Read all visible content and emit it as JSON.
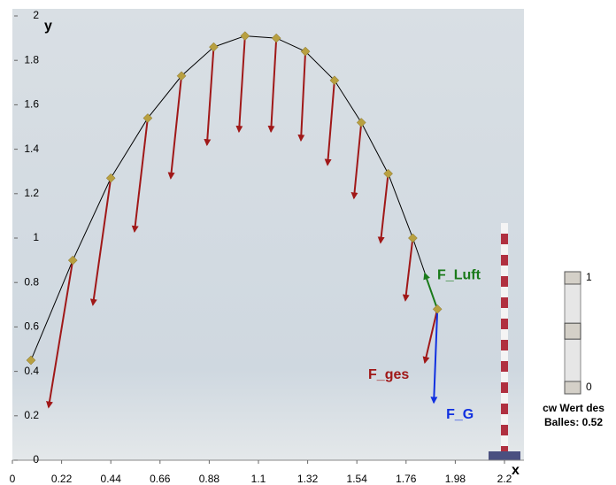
{
  "chart_data": {
    "type": "line",
    "x": [
      0.083,
      0.27,
      0.44,
      0.605,
      0.756,
      0.9,
      1.04,
      1.18,
      1.31,
      1.44,
      1.56,
      1.68,
      1.79,
      1.9
    ],
    "y": [
      0.45,
      0.9,
      1.27,
      1.54,
      1.73,
      1.86,
      1.91,
      1.9,
      1.84,
      1.71,
      1.52,
      1.29,
      1.0,
      0.68
    ],
    "color": "#000000",
    "marker_color": "#b8a040",
    "xlim": [
      0,
      2.2
    ],
    "ylim": [
      0,
      2
    ],
    "xticks": [
      0,
      0.22,
      0.44,
      0.66,
      0.88,
      1.1,
      1.32,
      1.54,
      1.76,
      1.98,
      2.2
    ],
    "yticks": [
      0,
      0.2,
      0.4,
      0.6,
      0.8,
      1,
      1.2,
      1.4,
      1.6,
      1.8,
      2
    ],
    "x_label": "x",
    "y_label": "y",
    "forces": [
      {
        "name": "F_ges",
        "color": "#a01818",
        "x_end": [
          null,
          0.162,
          0.36,
          0.546,
          0.708,
          0.87,
          1.013,
          1.156,
          1.29,
          1.409,
          1.527,
          1.646,
          1.757,
          1.844
        ],
        "y_end": [
          null,
          0.239,
          0.7,
          1.03,
          1.27,
          1.42,
          1.48,
          1.48,
          1.44,
          1.33,
          1.18,
          0.98,
          0.72,
          0.44
        ]
      },
      {
        "name": "F_Luft",
        "color": "#1a7a1a",
        "x_end": [
          null,
          null,
          null,
          null,
          null,
          null,
          null,
          null,
          null,
          null,
          null,
          null,
          null,
          1.844
        ],
        "y_end": [
          null,
          null,
          null,
          null,
          null,
          null,
          null,
          null,
          null,
          null,
          null,
          null,
          null,
          0.84
        ]
      },
      {
        "name": "F_G",
        "color": "#1030e0",
        "x_end": [
          null,
          null,
          null,
          null,
          null,
          null,
          null,
          null,
          null,
          null,
          null,
          null,
          null,
          1.884
        ],
        "y_end": [
          null,
          null,
          null,
          null,
          null,
          null,
          null,
          null,
          null,
          null,
          null,
          null,
          null,
          0.26
        ]
      }
    ]
  },
  "slider": {
    "min": 0,
    "max": 1,
    "value": 0.52,
    "caption": [
      "cw Wert des",
      "Balles: 0.52"
    ]
  }
}
